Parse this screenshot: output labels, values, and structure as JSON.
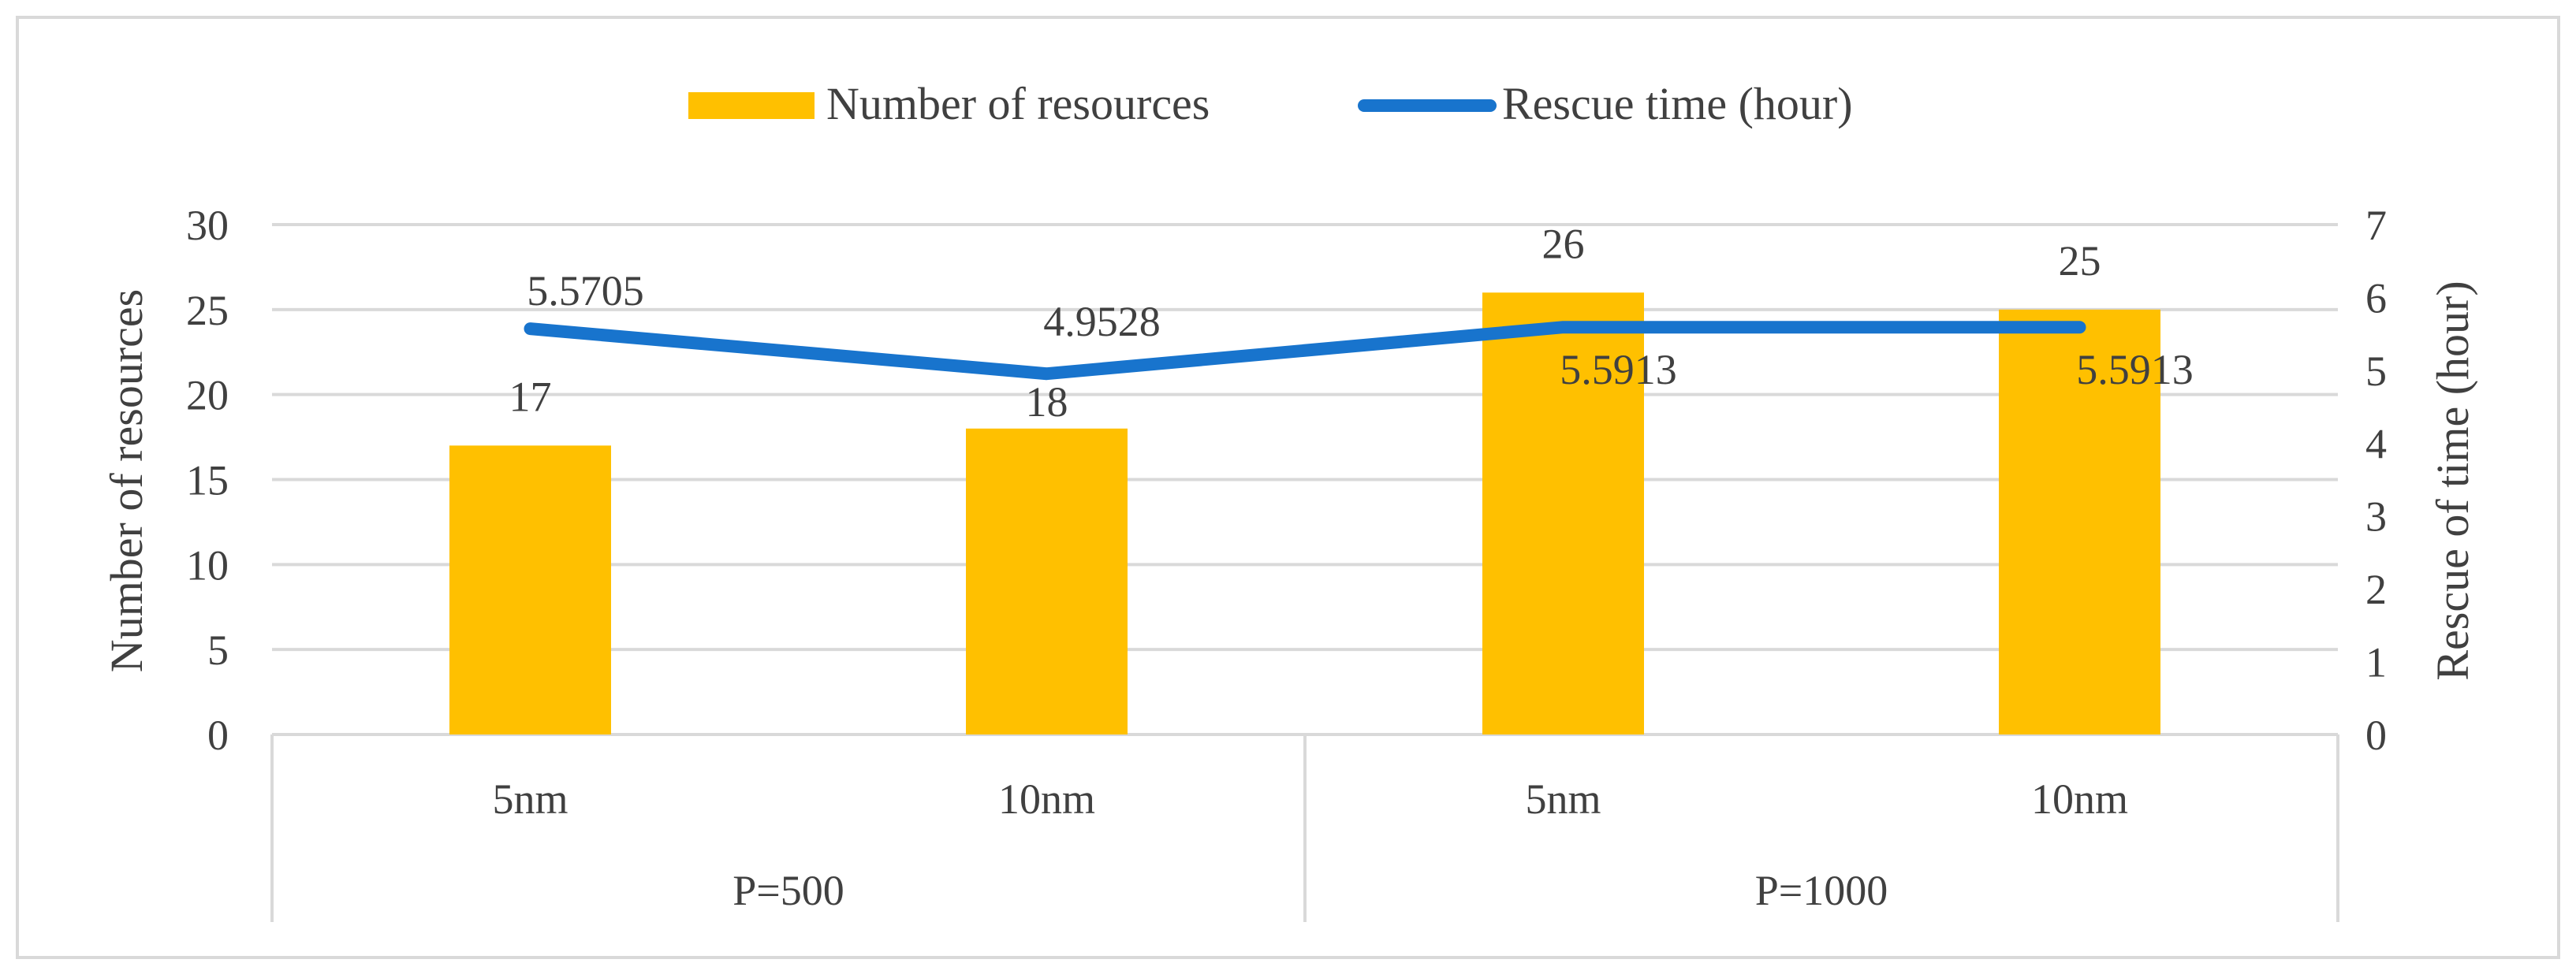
{
  "chart_data": {
    "type": "bar",
    "categories": [
      "5nm",
      "10nm",
      "5nm",
      "10nm"
    ],
    "groups": [
      {
        "label": "P=500",
        "span": [
          0,
          1
        ]
      },
      {
        "label": "P=1000",
        "span": [
          2,
          3
        ]
      }
    ],
    "series": [
      {
        "name": "Number of resources",
        "type": "bar",
        "axis": "left",
        "values": [
          17,
          18,
          26,
          25
        ],
        "color": "#FFC000",
        "labels": [
          "17",
          "18",
          "26",
          "25"
        ]
      },
      {
        "name": "Rescue time (hour)",
        "type": "line",
        "axis": "right",
        "values": [
          5.5705,
          4.9528,
          5.5913,
          5.5913
        ],
        "color": "#1874CD",
        "labels": [
          "5.5705",
          "4.9528",
          "5.5913",
          "5.5913"
        ]
      }
    ],
    "ylabel": "Number of resources",
    "y2label": "Rescue of time (hour)",
    "ylim": [
      0,
      30
    ],
    "y2lim": [
      0,
      7
    ],
    "yticks": [
      "0",
      "5",
      "10",
      "15",
      "20",
      "25",
      "30"
    ],
    "y2ticks": [
      "0",
      "1",
      "2",
      "3",
      "4",
      "5",
      "6",
      "7"
    ],
    "grid": true,
    "legend": "top-center",
    "colors": {
      "grid": "#D9D9D9",
      "text": "#404040",
      "frame": "#D9D9D9"
    }
  }
}
